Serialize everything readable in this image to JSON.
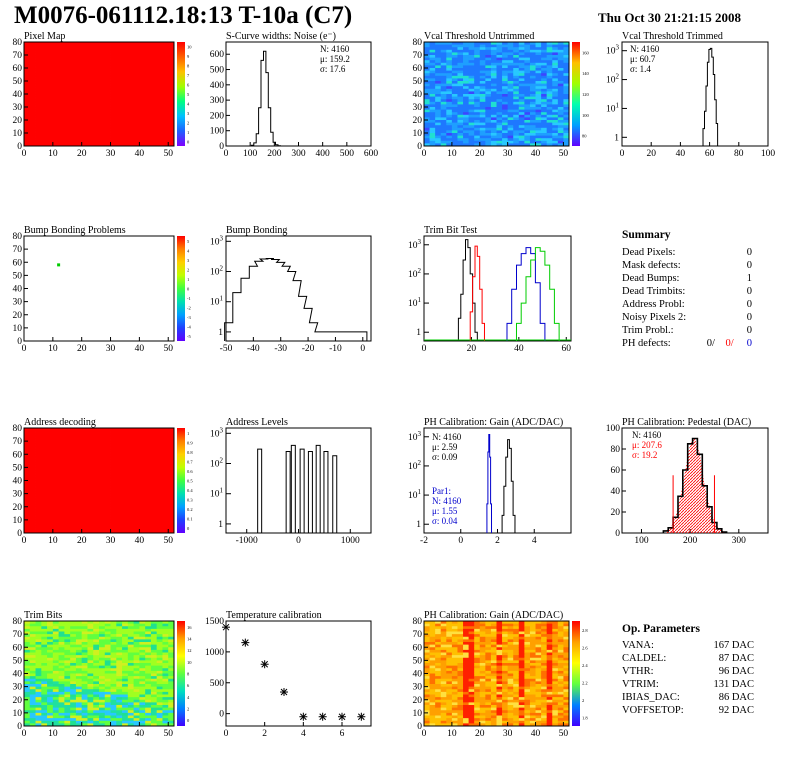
{
  "header": {
    "title": "M0076-061112.18:13 T-10a (C7)",
    "date": "Thu Oct 30 21:21:15 2008"
  },
  "colors": {
    "red": "#ff0000",
    "green": "#00cc00",
    "blue": "#0000cc",
    "hist_line": "#000000"
  },
  "chart_data": [
    {
      "id": "pixel-map",
      "type": "heatmap",
      "title": "Pixel Map",
      "xticks": [
        0,
        10,
        20,
        30,
        40,
        50
      ],
      "yticks": [
        0,
        10,
        20,
        30,
        40,
        50,
        60,
        70,
        80
      ],
      "xlim": [
        0,
        52
      ],
      "ylim": [
        0,
        80
      ],
      "zticks": [
        "10",
        "9",
        "8",
        "7",
        "6",
        "5",
        "4",
        "3",
        "2",
        "1",
        "0"
      ],
      "fill": "uniform red (all pixels responding)"
    },
    {
      "id": "scurve-noise",
      "type": "histogram",
      "title": "S-Curve widths: Noise (e⁻)",
      "xticks": [
        0,
        100,
        200,
        300,
        400,
        500,
        600
      ],
      "yticks": [
        0,
        100,
        200,
        300,
        400,
        500,
        600
      ],
      "xlim": [
        0,
        600
      ],
      "ylim": [
        0,
        680
      ],
      "stats": [
        "N: 4160",
        "μ: 159.2",
        "σ: 17.6"
      ],
      "x": [
        110,
        120,
        130,
        140,
        150,
        160,
        170,
        180,
        190,
        200,
        210,
        220
      ],
      "y": [
        5,
        20,
        80,
        250,
        560,
        620,
        480,
        250,
        90,
        25,
        8,
        2
      ]
    },
    {
      "id": "vcal-untrimmed",
      "type": "heatmap",
      "title": "Vcal Threshold Untrimmed",
      "xticks": [
        0,
        10,
        20,
        30,
        40,
        50
      ],
      "yticks": [
        0,
        10,
        20,
        30,
        40,
        50,
        60,
        70,
        80
      ],
      "xlim": [
        0,
        52
      ],
      "ylim": [
        0,
        80
      ],
      "zticks": [
        "160",
        "140",
        "120",
        "100",
        "80"
      ],
      "fill": "mostly blue/cyan noise"
    },
    {
      "id": "vcal-trimmed",
      "type": "histogram",
      "title": "Vcal Threshold Trimmed",
      "log_y": true,
      "xticks": [
        0,
        20,
        40,
        60,
        80,
        100
      ],
      "xlim": [
        0,
        100
      ],
      "ylim": [
        0.5,
        2000
      ],
      "stats": [
        "N: 4160",
        "μ: 60.7",
        "σ: 1.4"
      ],
      "x": [
        56,
        57,
        58,
        59,
        60,
        61,
        62,
        63,
        64,
        65
      ],
      "y": [
        2,
        8,
        60,
        400,
        1100,
        1200,
        600,
        150,
        20,
        3
      ]
    },
    {
      "id": "bump-problems",
      "type": "heatmap",
      "title": "Bump Bonding Problems",
      "xticks": [
        0,
        10,
        20,
        30,
        40,
        50
      ],
      "yticks": [
        0,
        10,
        20,
        30,
        40,
        50,
        60,
        70,
        80
      ],
      "xlim": [
        0,
        52
      ],
      "ylim": [
        0,
        80
      ],
      "zticks": [
        "5",
        "4",
        "3",
        "2",
        "1",
        "0",
        "-1",
        "-2",
        "-3",
        "-4",
        "-5"
      ],
      "points": [
        {
          "x": 12,
          "y": 58
        }
      ]
    },
    {
      "id": "bump-bonding",
      "type": "histogram",
      "title": "Bump Bonding",
      "log_y": true,
      "xticks": [
        -50,
        -40,
        -30,
        -20,
        -10,
        0
      ],
      "xlim": [
        -50,
        3
      ],
      "ylim": [
        0.5,
        1500
      ],
      "x": [
        -49,
        -46,
        -43,
        -40,
        -38,
        -36,
        -34,
        -32,
        -30,
        -28,
        -26,
        -24,
        -22,
        -20,
        -18,
        -16,
        0
      ],
      "y": [
        2,
        20,
        60,
        150,
        220,
        260,
        270,
        250,
        200,
        150,
        100,
        50,
        15,
        6,
        2,
        1,
        1
      ]
    },
    {
      "id": "trim-bit-test",
      "type": "histogram",
      "title": "Trim Bit Test",
      "log_y": true,
      "xticks": [
        0,
        20,
        40,
        60
      ],
      "xlim": [
        0,
        62
      ],
      "ylim": [
        0.5,
        2000
      ],
      "series": [
        {
          "color": "#000000",
          "x": [
            15,
            16,
            17,
            18,
            19,
            20,
            21,
            22
          ],
          "y": [
            3,
            20,
            300,
            1500,
            800,
            100,
            10,
            1
          ]
        },
        {
          "color": "#ff0000",
          "x": [
            20,
            21,
            22,
            23,
            24,
            25
          ],
          "y": [
            5,
            80,
            900,
            400,
            30,
            2
          ]
        },
        {
          "color": "#0000cc",
          "x": [
            36,
            38,
            40,
            42,
            44,
            46,
            48,
            50
          ],
          "y": [
            2,
            30,
            200,
            500,
            800,
            500,
            50,
            2
          ]
        },
        {
          "color": "#00cc00",
          "x": [
            40,
            42,
            44,
            46,
            48,
            50,
            52,
            54,
            56
          ],
          "y": [
            2,
            10,
            80,
            300,
            800,
            600,
            200,
            30,
            2
          ]
        }
      ]
    },
    {
      "id": "address-decoding",
      "type": "heatmap",
      "title": "Address decoding",
      "xticks": [
        0,
        10,
        20,
        30,
        40,
        50
      ],
      "yticks": [
        0,
        10,
        20,
        30,
        40,
        50,
        60,
        70,
        80
      ],
      "xlim": [
        0,
        52
      ],
      "ylim": [
        0,
        80
      ],
      "zticks": [
        "1",
        "0.9",
        "0.8",
        "0.7",
        "0.6",
        "0.5",
        "0.4",
        "0.3",
        "0.2",
        "0.1",
        "0"
      ],
      "fill": "uniform red (all addresses decoded)"
    },
    {
      "id": "address-levels",
      "type": "histogram",
      "title": "Address Levels",
      "log_y": true,
      "xticks": [
        -1000,
        0,
        1000
      ],
      "xlim": [
        -1400,
        1400
      ],
      "ylim": [
        0.5,
        1500
      ],
      "x": [
        -750,
        -200,
        -100,
        70,
        230,
        380,
        530,
        700
      ],
      "y": [
        300,
        250,
        400,
        300,
        250,
        400,
        250,
        180
      ]
    },
    {
      "id": "ph-gain",
      "type": "histogram",
      "title": "PH Calibration: Gain (ADC/DAC)",
      "log_y": true,
      "xticks": [
        -2,
        0,
        2,
        4
      ],
      "xlim": [
        -2,
        6
      ],
      "ylim": [
        0.5,
        2000
      ],
      "stats": [
        "N: 4160",
        "μ: 2.59",
        "σ: 0.09"
      ],
      "stats2": [
        "Par1:",
        "N: 4160",
        "μ: 1.55",
        "σ: 0.04"
      ],
      "series": [
        {
          "color": "#000000",
          "x": [
            2.3,
            2.4,
            2.5,
            2.6,
            2.7,
            2.8,
            2.9
          ],
          "y": [
            2,
            20,
            200,
            800,
            400,
            30,
            2
          ]
        },
        {
          "color": "#0000cc",
          "x": [
            1.45,
            1.5,
            1.55,
            1.6,
            1.65
          ],
          "y": [
            5,
            300,
            1200,
            200,
            5
          ]
        }
      ]
    },
    {
      "id": "ph-pedestal",
      "type": "histogram",
      "title": "PH Calibration: Pedestal (DAC)",
      "xticks": [
        100,
        200,
        300
      ],
      "xlim": [
        60,
        360
      ],
      "ylim": [
        0,
        100
      ],
      "yticks": [
        0,
        20,
        40,
        60,
        80,
        100
      ],
      "stats": [
        "N: 4160",
        "μ: 207.6",
        "σ: 19.2"
      ],
      "cut_lines": [
        165,
        250
      ],
      "x": [
        150,
        160,
        170,
        180,
        190,
        200,
        210,
        220,
        230,
        240,
        250,
        260,
        270
      ],
      "y": [
        2,
        5,
        15,
        35,
        60,
        85,
        90,
        75,
        45,
        25,
        10,
        4,
        1
      ]
    },
    {
      "id": "trim-bits",
      "type": "heatmap",
      "title": "Trim Bits",
      "xticks": [
        0,
        10,
        20,
        30,
        40,
        50
      ],
      "yticks": [
        0,
        10,
        20,
        30,
        40,
        50,
        60,
        70,
        80
      ],
      "xlim": [
        0,
        52
      ],
      "ylim": [
        0,
        80
      ],
      "zticks": [
        "16",
        "14",
        "12",
        "10",
        "8",
        "6",
        "4",
        "2",
        "0"
      ],
      "fill": "green/yellow map"
    },
    {
      "id": "temp-calibration",
      "type": "scatter",
      "title": "Temperature calibration",
      "xticks": [
        0,
        2,
        4,
        6
      ],
      "yticks": [
        0,
        500,
        1000,
        1500
      ],
      "xlim": [
        0,
        7.5
      ],
      "ylim": [
        -200,
        1500
      ],
      "x": [
        0,
        1,
        2,
        3,
        4,
        5,
        6,
        7
      ],
      "y": [
        1400,
        1150,
        800,
        350,
        -50,
        -50,
        -50,
        -50
      ]
    },
    {
      "id": "ph-gain-map",
      "type": "heatmap",
      "title": "PH Calibration: Gain (ADC/DAC)",
      "xticks": [
        0,
        10,
        20,
        30,
        40,
        50
      ],
      "yticks": [
        0,
        10,
        20,
        30,
        40,
        50,
        60,
        70,
        80
      ],
      "xlim": [
        0,
        52
      ],
      "ylim": [
        0,
        80
      ],
      "zticks": [
        "2.8",
        "2.6",
        "2.4",
        "2.2",
        "2",
        "1.8"
      ],
      "fill": "orange/yellow with red column stripes"
    }
  ],
  "summary": {
    "title": "Summary",
    "rows": [
      {
        "label": "Dead Pixels:",
        "value": "0"
      },
      {
        "label": "Mask defects:",
        "value": "0"
      },
      {
        "label": "Dead Bumps:",
        "value": "1"
      },
      {
        "label": "Dead Trimbits:",
        "value": "0"
      },
      {
        "label": "Address Probl:",
        "value": "0"
      },
      {
        "label": "Noisy Pixels 2:",
        "value": "0"
      },
      {
        "label": "Trim Probl.:",
        "value": "0"
      }
    ],
    "ph_label": "PH defects:",
    "ph_values": [
      "0/",
      "0/",
      "0"
    ]
  },
  "op_parameters": {
    "title": "Op. Parameters",
    "rows": [
      {
        "label": "VANA:",
        "value": "167 DAC"
      },
      {
        "label": "CALDEL:",
        "value": "87 DAC"
      },
      {
        "label": "VTHR:",
        "value": "96 DAC"
      },
      {
        "label": "VTRIM:",
        "value": "131 DAC"
      },
      {
        "label": "IBIAS_DAC:",
        "value": "86 DAC"
      },
      {
        "label": "VOFFSETOP:",
        "value": "92 DAC"
      }
    ]
  }
}
